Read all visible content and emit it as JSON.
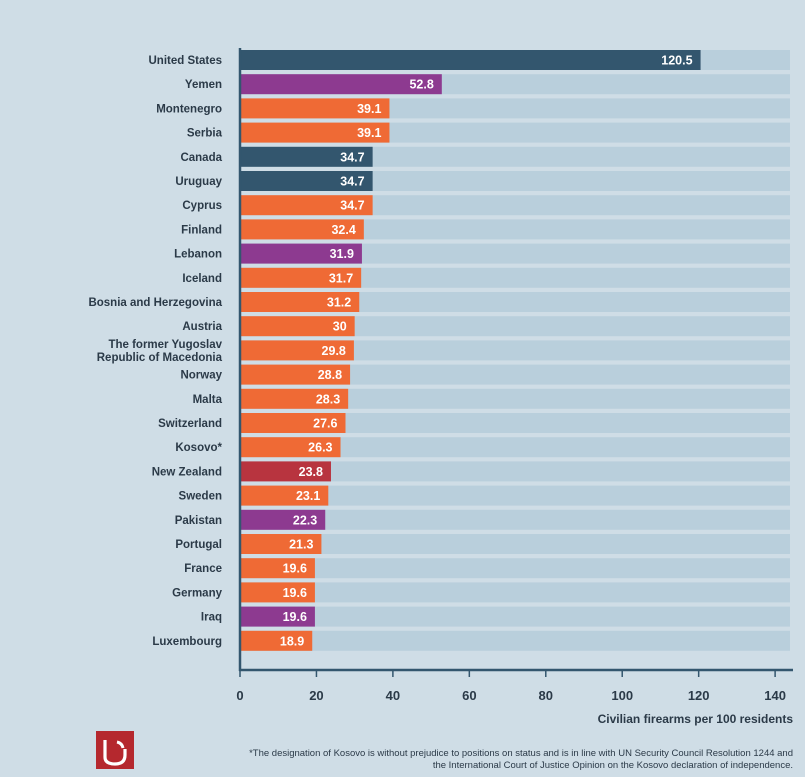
{
  "chart_data": {
    "type": "bar",
    "orientation": "horizontal",
    "categories": [
      "United States",
      "Yemen",
      "Montenegro",
      "Serbia",
      "Canada",
      "Uruguay",
      "Cyprus",
      "Finland",
      "Lebanon",
      "Iceland",
      "Bosnia and Herzegovina",
      "Austria",
      "The former Yugoslav Republic of Macedonia",
      "Norway",
      "Malta",
      "Switzerland",
      "Kosovo*",
      "New Zealand",
      "Sweden",
      "Pakistan",
      "Portugal",
      "France",
      "Germany",
      "Iraq",
      "Luxembourg"
    ],
    "category_lines": [
      [
        "United States"
      ],
      [
        "Yemen"
      ],
      [
        "Montenegro"
      ],
      [
        "Serbia"
      ],
      [
        "Canada"
      ],
      [
        "Uruguay"
      ],
      [
        "Cyprus"
      ],
      [
        "Finland"
      ],
      [
        "Lebanon"
      ],
      [
        "Iceland"
      ],
      [
        "Bosnia and Herzegovina"
      ],
      [
        "Austria"
      ],
      [
        "The former Yugoslav",
        "Republic of Macedonia"
      ],
      [
        "Norway"
      ],
      [
        "Malta"
      ],
      [
        "Switzerland"
      ],
      [
        "Kosovo*"
      ],
      [
        "New Zealand"
      ],
      [
        "Sweden"
      ],
      [
        "Pakistan"
      ],
      [
        "Portugal"
      ],
      [
        "France"
      ],
      [
        "Germany"
      ],
      [
        "Iraq"
      ],
      [
        "Luxembourg"
      ]
    ],
    "values": [
      120.5,
      52.8,
      39.1,
      39.1,
      34.7,
      34.7,
      34.7,
      32.4,
      31.9,
      31.7,
      31.2,
      30,
      29.8,
      28.8,
      28.3,
      27.6,
      26.3,
      23.8,
      23.1,
      22.3,
      21.3,
      19.6,
      19.6,
      19.6,
      18.9
    ],
    "value_labels": [
      "120.5",
      "52.8",
      "39.1",
      "39.1",
      "34.7",
      "34.7",
      "34.7",
      "32.4",
      "31.9",
      "31.7",
      "31.2",
      "30",
      "29.8",
      "28.8",
      "28.3",
      "27.6",
      "26.3",
      "23.8",
      "23.1",
      "22.3",
      "21.3",
      "19.6",
      "19.6",
      "19.6",
      "18.9"
    ],
    "bar_groups": [
      "navy",
      "purple",
      "orange",
      "orange",
      "navy",
      "navy",
      "orange",
      "orange",
      "purple",
      "orange",
      "orange",
      "orange",
      "orange",
      "orange",
      "orange",
      "orange",
      "orange",
      "red",
      "orange",
      "purple",
      "orange",
      "orange",
      "orange",
      "purple",
      "orange"
    ],
    "colors": {
      "navy": "#33566e",
      "purple": "#8d3a90",
      "orange": "#ef6a35",
      "red": "#b8343f",
      "track": "#b9cfdc",
      "background": "#cfdde6",
      "axis": "#33566e",
      "text": "#2b3a48"
    },
    "x_ticks": [
      0,
      20,
      40,
      60,
      80,
      100,
      120,
      140
    ],
    "xlim": [
      0,
      145
    ],
    "xlabel": "Civilian firearms per 100 residents",
    "title": "",
    "grid": false
  },
  "footnote": {
    "line1": "*The designation of Kosovo is without prejudice to positions on status and is in line with UN Security Council Resolution 1244 and",
    "line2": "the International Court of Justice Opinion on the Kosovo declaration of independence."
  },
  "logo_icon": "publisher-logo-icon"
}
